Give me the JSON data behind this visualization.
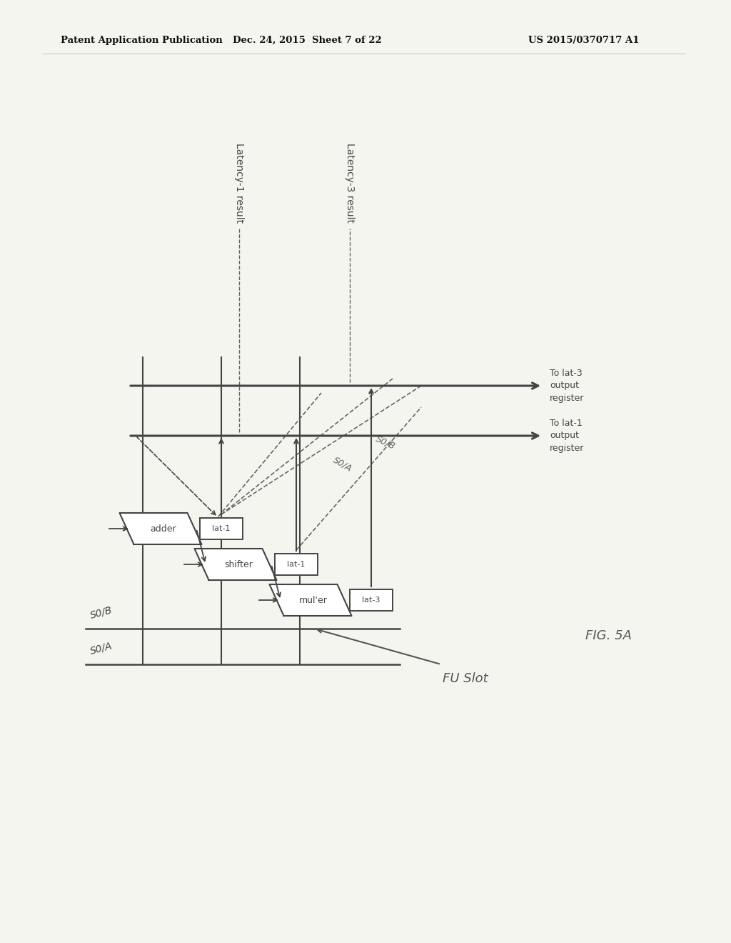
{
  "bg_color": "#f5f5f0",
  "line_color": "#444444",
  "dashed_color": "#666666",
  "header_left": "Patent Application Publication",
  "header_center": "Dec. 24, 2015  Sheet 7 of 22",
  "header_right": "US 2015/0370717 A1",
  "fig_label": "FIG. 5A",
  "fu_slot_label": "FU Slot",
  "latency1_label": "Latency-1 result",
  "latency3_label": "Latency-3 result",
  "to_lat1_label": "To lat-1\noutput\nregister",
  "to_lat3_label": "To lat-3\noutput\nregister",
  "s0a_label": "S0/A",
  "s0b_label": "S0/B",
  "bus_s0a_label": "S0/A",
  "bus_s0b_label": "S0/B",
  "adder_label": "adder",
  "shifter_label": "shifter",
  "muler_label": "mul'er",
  "lat1a_label": "lat-1",
  "lat1b_label": "lat-1",
  "lat3_label": "lat-3"
}
